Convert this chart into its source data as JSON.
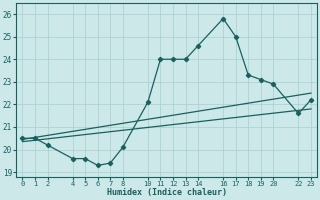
{
  "xlabel": "Humidex (Indice chaleur)",
  "bg_color": "#cce8e8",
  "grid_color": "#aacece",
  "line_color": "#1a6060",
  "xlim": [
    -0.5,
    23.5
  ],
  "ylim": [
    18.8,
    26.5
  ],
  "xticks": [
    0,
    1,
    2,
    4,
    5,
    6,
    7,
    8,
    10,
    11,
    12,
    13,
    14,
    16,
    17,
    18,
    19,
    20,
    22,
    23
  ],
  "yticks": [
    19,
    20,
    21,
    22,
    23,
    24,
    25,
    26
  ],
  "line1_x": [
    0,
    1,
    2,
    4,
    5,
    6,
    7,
    8,
    10,
    11,
    12,
    13,
    14,
    16,
    17,
    18,
    19,
    20,
    22,
    23
  ],
  "line1_y": [
    20.5,
    20.5,
    20.2,
    19.6,
    19.6,
    19.3,
    19.4,
    20.1,
    22.1,
    24.0,
    24.0,
    24.0,
    24.6,
    25.8,
    25.0,
    23.3,
    23.1,
    22.9,
    21.6,
    22.2
  ],
  "line2_x": [
    0,
    23
  ],
  "line2_y": [
    20.45,
    22.5
  ],
  "line3_x": [
    0,
    23
  ],
  "line3_y": [
    20.35,
    21.8
  ],
  "figsize": [
    3.2,
    2.0
  ],
  "dpi": 100
}
